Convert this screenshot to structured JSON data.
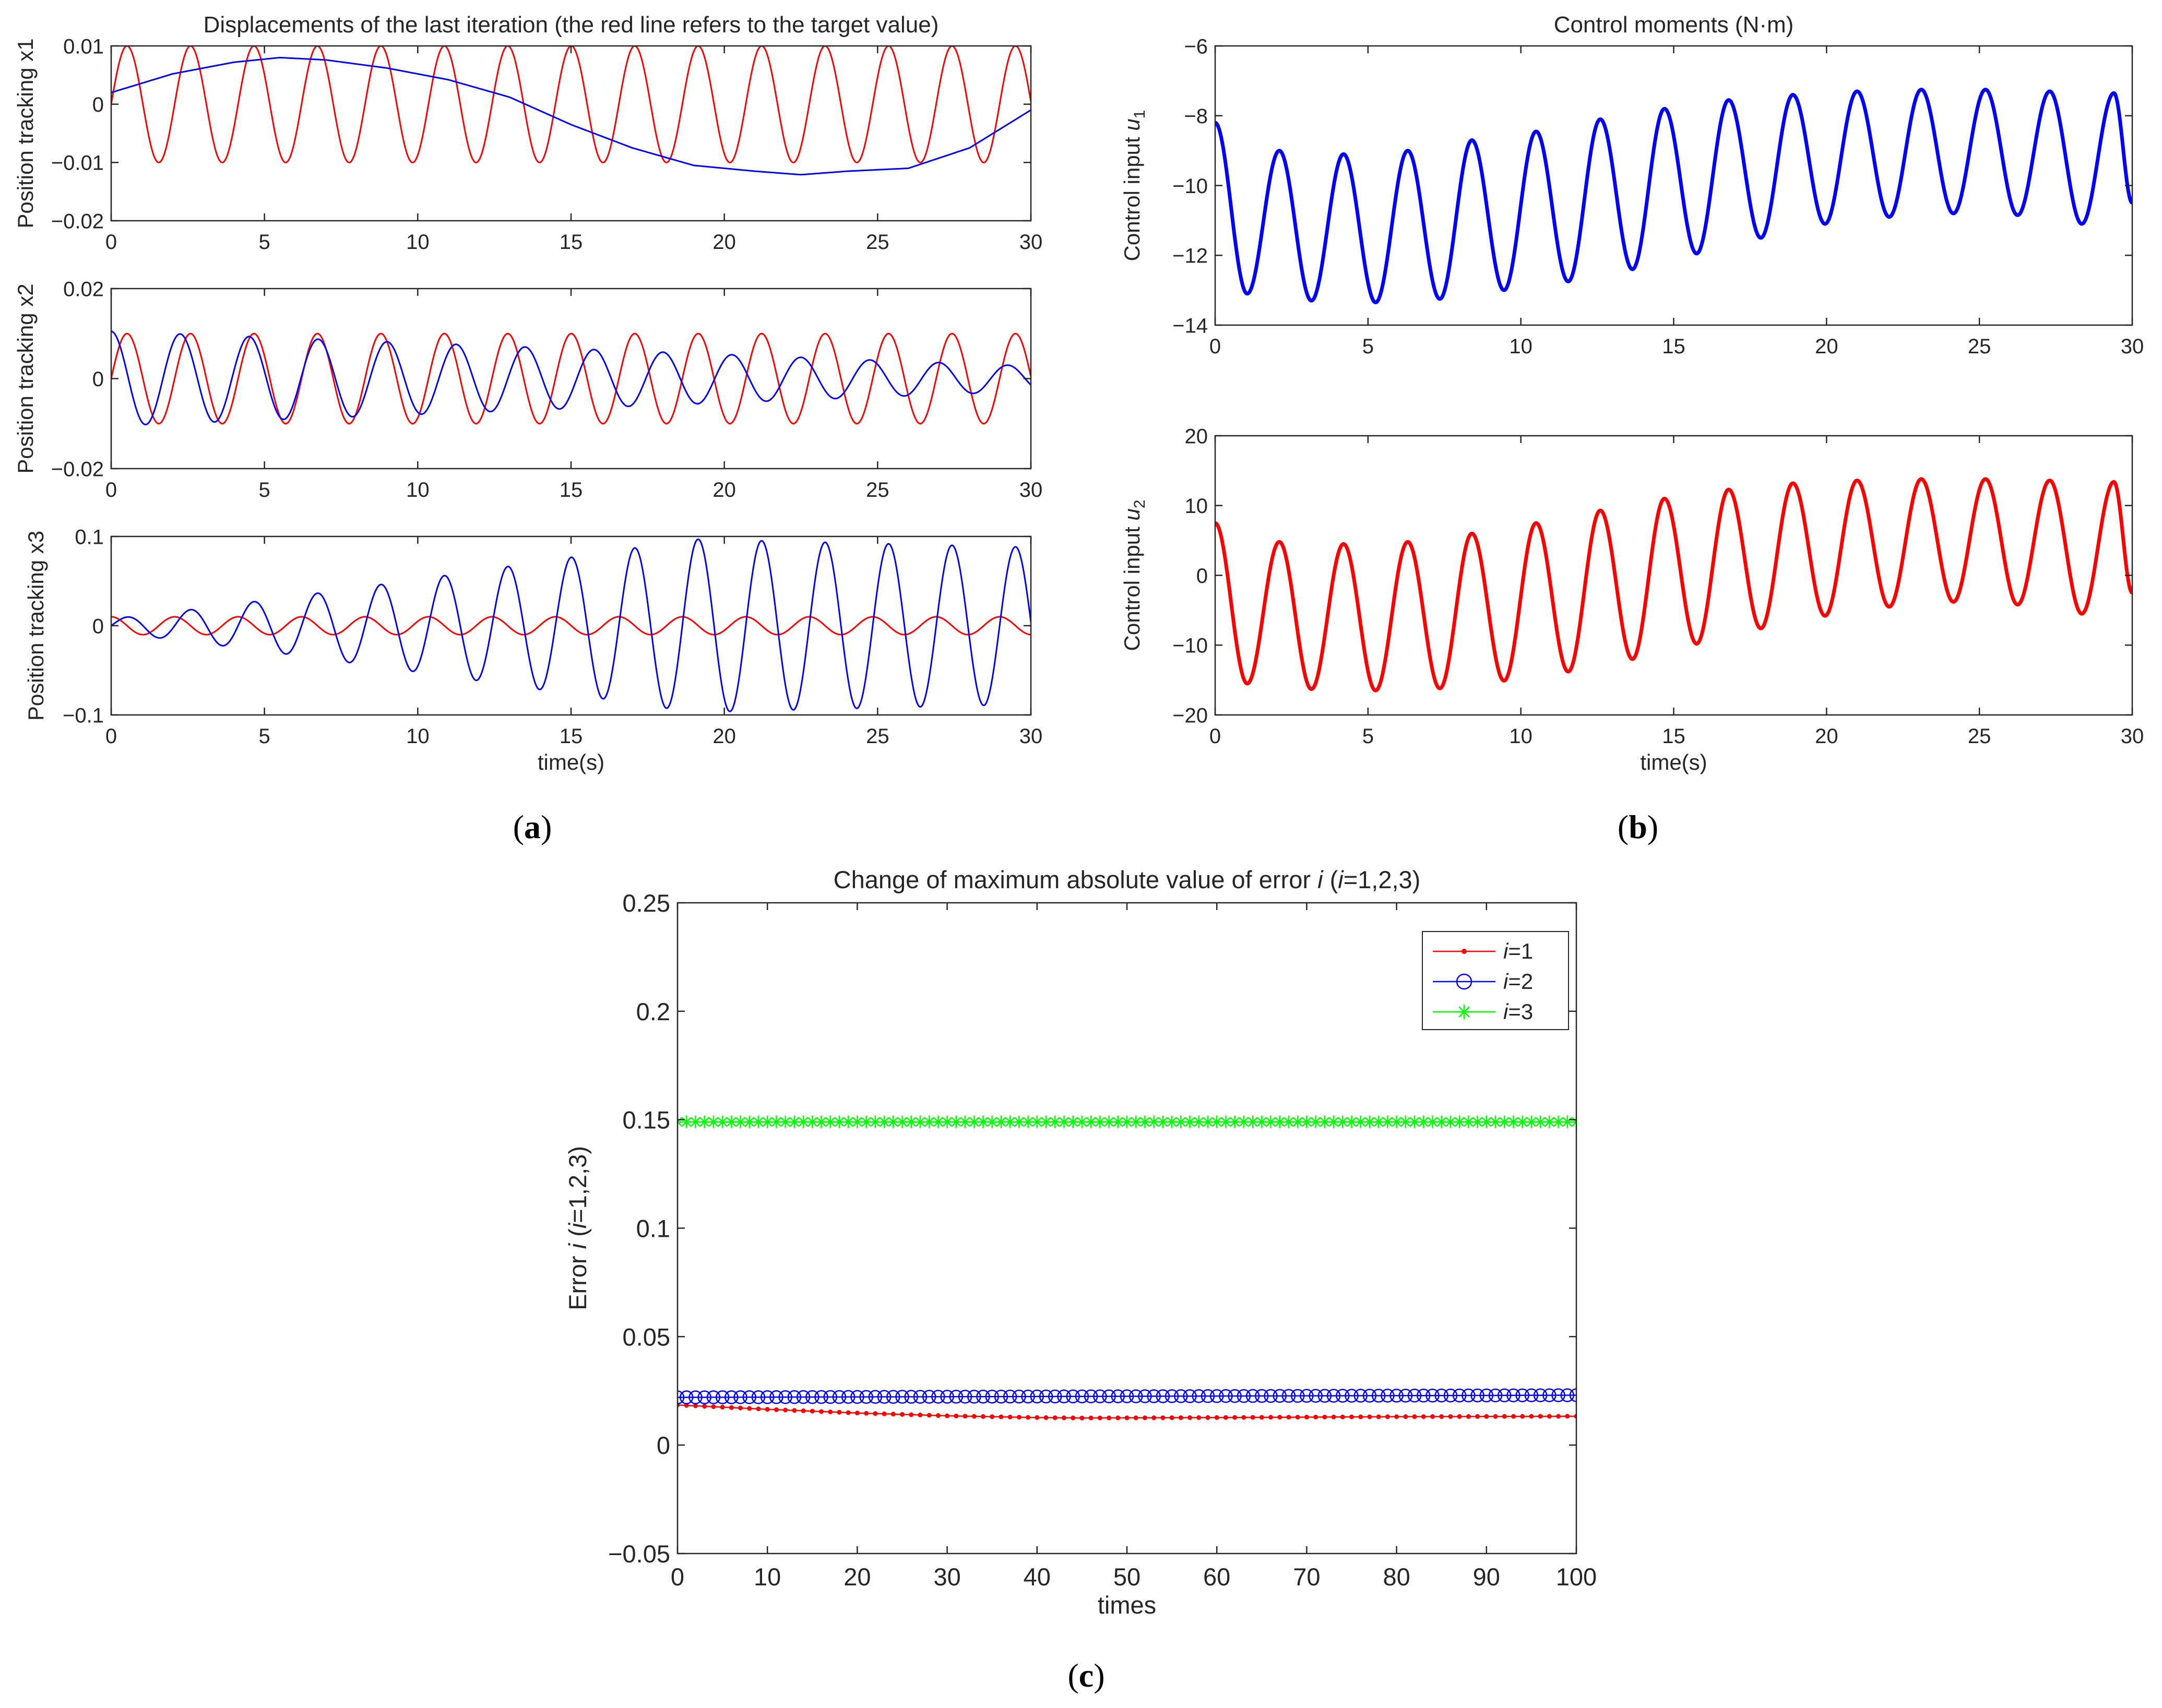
{
  "panel_labels": {
    "a": {
      "open": "(",
      "letter": "a",
      "close": ")"
    },
    "b": {
      "open": "(",
      "letter": "b",
      "close": ")"
    },
    "c": {
      "open": "(",
      "letter": "c",
      "close": ")"
    }
  },
  "chart_data": [
    {
      "id": "a1",
      "type": "line",
      "title": "Displacements of the last iteration (the red line refers to the target value)",
      "ylabel": "Position tracking x1",
      "xlabel": "",
      "xlim": [
        0,
        30
      ],
      "ylim": [
        -0.02,
        0.01
      ],
      "xticks": [
        0,
        5,
        10,
        15,
        20,
        25,
        30
      ],
      "xtick_labels": [
        "0",
        "5",
        "10",
        "15",
        "20",
        "25",
        "30"
      ],
      "yticks": [
        -0.02,
        -0.01,
        0,
        0.01
      ],
      "ytick_labels": [
        "−0.02",
        "−0.01",
        "0",
        "0.01"
      ],
      "series": [
        {
          "name": "target",
          "color": "#ff0000",
          "model": {
            "kind": "sine",
            "amp": 0.01,
            "period": 2.07,
            "phase": 0.0,
            "offset": 0
          }
        },
        {
          "name": "actual",
          "color": "#0000ff",
          "x": [
            0,
            2,
            4,
            5.5,
            7,
            9,
            11,
            13,
            15,
            17,
            19,
            21,
            22.5,
            24,
            26,
            28,
            30
          ],
          "y": [
            0.002,
            0.0052,
            0.0072,
            0.008,
            0.0076,
            0.0062,
            0.0042,
            0.0012,
            -0.0035,
            -0.0075,
            -0.0105,
            -0.0115,
            -0.0121,
            -0.0115,
            -0.011,
            -0.0075,
            -0.001
          ]
        }
      ]
    },
    {
      "id": "a2",
      "type": "line",
      "title": "",
      "ylabel": "Position tracking x2",
      "xlabel": "",
      "xlim": [
        0,
        30
      ],
      "ylim": [
        -0.02,
        0.02
      ],
      "xticks": [
        0,
        5,
        10,
        15,
        20,
        25,
        30
      ],
      "xtick_labels": [
        "0",
        "5",
        "10",
        "15",
        "20",
        "25",
        "30"
      ],
      "yticks": [
        -0.02,
        0,
        0.02
      ],
      "ytick_labels": [
        "−0.02",
        "0",
        "0.02"
      ],
      "series": [
        {
          "name": "target",
          "color": "#ff0000",
          "model": {
            "kind": "sine",
            "amp": 0.01,
            "period": 2.07,
            "phase": 0.0,
            "offset": 0
          }
        },
        {
          "name": "actual",
          "color": "#0000ff",
          "model": {
            "kind": "decay_cos",
            "amp0": 0.0105,
            "amp1": 0.0028,
            "period": 2.25,
            "offset": 0
          }
        }
      ]
    },
    {
      "id": "a3",
      "type": "line",
      "title": "",
      "ylabel": "Position tracking x3",
      "xlabel": "time(s)",
      "xlim": [
        0,
        30
      ],
      "ylim": [
        -0.1,
        0.1
      ],
      "xticks": [
        0,
        5,
        10,
        15,
        20,
        25,
        30
      ],
      "xtick_labels": [
        "0",
        "5",
        "10",
        "15",
        "20",
        "25",
        "30"
      ],
      "yticks": [
        -0.1,
        0,
        0.1
      ],
      "ytick_labels": [
        "−0.1",
        "0",
        "0.1"
      ],
      "series": [
        {
          "name": "target",
          "color": "#ff0000",
          "model": {
            "kind": "cos",
            "amp": 0.01,
            "period": 2.07,
            "phase": 0.0,
            "offset": 0
          }
        },
        {
          "name": "actual",
          "color": "#0000ff",
          "model": {
            "kind": "grow_sin",
            "peak": 0.097,
            "grow_until": 19,
            "final": 0.088,
            "period": 2.07,
            "start": 0.008
          }
        }
      ]
    },
    {
      "id": "b1",
      "type": "line",
      "title": "Control moments (N·m)",
      "ylabel": "Control input u1",
      "ylabel_main": "Control input ",
      "ylabel_var": "u",
      "ylabel_sub": "1",
      "xlabel": "",
      "xlim": [
        0,
        30
      ],
      "ylim": [
        -14,
        -6
      ],
      "xticks": [
        0,
        5,
        10,
        15,
        20,
        25,
        30
      ],
      "xtick_labels": [
        "0",
        "5",
        "10",
        "15",
        "20",
        "25",
        "30"
      ],
      "yticks": [
        -14,
        -12,
        -10,
        -8,
        -6
      ],
      "ytick_labels": [
        "−14",
        "−12",
        "−10",
        "−8",
        "−6"
      ],
      "series": [
        {
          "name": "u1",
          "color": "#0000ff",
          "model": {
            "kind": "osc",
            "period": 2.1,
            "start_y": -8.2,
            "peaks": [
              [
                2.1,
                -9.0
              ],
              [
                4.2,
                -9.1
              ],
              [
                6.3,
                -9.0
              ],
              [
                8.4,
                -8.7
              ],
              [
                10.5,
                -8.45
              ],
              [
                12.6,
                -8.1
              ],
              [
                14.7,
                -7.8
              ],
              [
                16.8,
                -7.55
              ],
              [
                18.9,
                -7.4
              ],
              [
                21.0,
                -7.3
              ],
              [
                23.1,
                -7.25
              ],
              [
                25.2,
                -7.25
              ],
              [
                27.3,
                -7.3
              ],
              [
                29.4,
                -7.35
              ]
            ],
            "troughs": [
              [
                1.05,
                -13.1
              ],
              [
                3.15,
                -13.3
              ],
              [
                5.25,
                -13.35
              ],
              [
                7.35,
                -13.25
              ],
              [
                9.45,
                -13.0
              ],
              [
                11.55,
                -12.75
              ],
              [
                13.65,
                -12.4
              ],
              [
                15.75,
                -11.95
              ],
              [
                17.85,
                -11.5
              ],
              [
                19.95,
                -11.1
              ],
              [
                22.05,
                -10.9
              ],
              [
                24.15,
                -10.8
              ],
              [
                26.25,
                -10.85
              ],
              [
                28.35,
                -11.1
              ]
            ],
            "end_y": -10.5
          }
        }
      ]
    },
    {
      "id": "b2",
      "type": "line",
      "title": "",
      "ylabel": "Control input u2",
      "ylabel_main": "Control input ",
      "ylabel_var": "u",
      "ylabel_sub": "2",
      "xlabel": "time(s)",
      "xlim": [
        0,
        30
      ],
      "ylim": [
        -20,
        20
      ],
      "xticks": [
        0,
        5,
        10,
        15,
        20,
        25,
        30
      ],
      "xtick_labels": [
        "0",
        "5",
        "10",
        "15",
        "20",
        "25",
        "30"
      ],
      "yticks": [
        -20,
        -10,
        0,
        10,
        20
      ],
      "ytick_labels": [
        "−20",
        "−10",
        "0",
        "10",
        "20"
      ],
      "series": [
        {
          "name": "u2",
          "color": "#ff0000",
          "model": {
            "kind": "osc",
            "period": 2.1,
            "start_y": 7.5,
            "peaks": [
              [
                2.1,
                4.8
              ],
              [
                4.2,
                4.5
              ],
              [
                6.3,
                4.8
              ],
              [
                8.4,
                6.0
              ],
              [
                10.5,
                7.5
              ],
              [
                12.6,
                9.3
              ],
              [
                14.7,
                11.0
              ],
              [
                16.8,
                12.3
              ],
              [
                18.9,
                13.2
              ],
              [
                21.0,
                13.6
              ],
              [
                23.1,
                13.8
              ],
              [
                25.2,
                13.8
              ],
              [
                27.3,
                13.6
              ],
              [
                29.4,
                13.4
              ]
            ],
            "troughs": [
              [
                1.05,
                -15.5
              ],
              [
                3.15,
                -16.3
              ],
              [
                5.25,
                -16.5
              ],
              [
                7.35,
                -16.2
              ],
              [
                9.45,
                -15.1
              ],
              [
                11.55,
                -13.8
              ],
              [
                13.65,
                -12.0
              ],
              [
                15.75,
                -9.8
              ],
              [
                17.85,
                -7.6
              ],
              [
                19.95,
                -5.8
              ],
              [
                22.05,
                -4.5
              ],
              [
                24.15,
                -3.8
              ],
              [
                26.25,
                -4.2
              ],
              [
                28.35,
                -5.5
              ]
            ],
            "end_y": -2.5
          }
        }
      ]
    },
    {
      "id": "c",
      "type": "line",
      "title": "Change of maximum absolute value of error",
      "title_var": "i",
      "title_suffix_open": "(",
      "title_suffix_var": "i",
      "title_suffix_rest": "=1,2,3)",
      "ylabel": "Error i (i=1,2,3)",
      "ylabel_main": "Error ",
      "ylabel_var": "i",
      "ylabel_open": " (",
      "ylabel_var2": "i",
      "ylabel_rest": "=1,2,3)",
      "xlabel": "times",
      "xlim": [
        0,
        100
      ],
      "ylim": [
        -0.05,
        0.25
      ],
      "xticks": [
        0,
        10,
        20,
        30,
        40,
        50,
        60,
        70,
        80,
        90,
        100
      ],
      "xtick_labels": [
        "0",
        "10",
        "20",
        "30",
        "40",
        "50",
        "60",
        "70",
        "80",
        "90",
        "100"
      ],
      "yticks": [
        -0.05,
        0,
        0.05,
        0.1,
        0.15,
        0.2,
        0.25
      ],
      "ytick_labels": [
        "−0.05",
        "0",
        "0.05",
        "0.1",
        "0.15",
        "0.2",
        "0.25"
      ],
      "legend": {
        "position": "top-right",
        "entries": [
          {
            "var": "i",
            "rest": "=1",
            "color": "#ff0000",
            "marker": "dot"
          },
          {
            "var": "i",
            "rest": "=2",
            "color": "#0000ff",
            "marker": "circle"
          },
          {
            "var": "i",
            "rest": "=3",
            "color": "#00ff00",
            "marker": "star"
          }
        ]
      },
      "series": [
        {
          "name": "i=1",
          "color": "#ff0000",
          "marker": "dot",
          "x_start": 0,
          "x_end": 100,
          "x_step": 1,
          "model": {
            "kind": "piecewise",
            "x": [
              0,
              10,
              20,
              30,
              40,
              45,
              60,
              80,
              100
            ],
            "y": [
              0.0185,
              0.0165,
              0.0148,
              0.0135,
              0.0127,
              0.0125,
              0.0127,
              0.0131,
              0.0133
            ]
          }
        },
        {
          "name": "i=2",
          "color": "#0000ff",
          "marker": "circle",
          "x_start": 0,
          "x_end": 100,
          "x_step": 1,
          "model": {
            "kind": "piecewise",
            "x": [
              0,
              50,
              100
            ],
            "y": [
              0.022,
              0.0225,
              0.023
            ]
          }
        },
        {
          "name": "i=3",
          "color": "#00ff00",
          "marker": "star",
          "x_start": 0,
          "x_end": 100,
          "x_step": 1,
          "model": {
            "kind": "piecewise",
            "x": [
              0,
              100
            ],
            "y": [
              0.149,
              0.149
            ]
          }
        }
      ]
    }
  ]
}
